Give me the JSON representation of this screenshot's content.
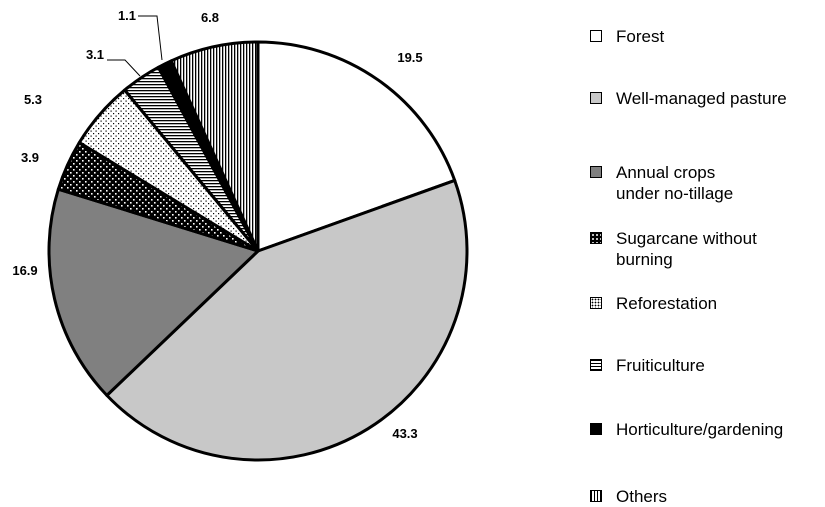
{
  "chart_data": {
    "type": "pie",
    "categories": [
      "Forest",
      "Well-managed pasture",
      "Annual crops\nunder no-tillage",
      "Sugarcane without\nburning",
      "Reforestation",
      "Fruiticulture",
      "Horticulture/gardening",
      "Others"
    ],
    "values": [
      19.5,
      43.3,
      16.9,
      3.9,
      5.3,
      3.1,
      1.1,
      6.8
    ],
    "value_labels": [
      "19.5",
      "43.3",
      "16.9",
      "3.9",
      "5.3",
      "3.1",
      "1.1",
      "6.8"
    ],
    "fills": [
      "white",
      "light-gray",
      "dark-gray",
      "black-dotted",
      "white-dotted",
      "horizontal-lines",
      "black",
      "vertical-lines"
    ],
    "legend_position": "right",
    "start": "12 o'clock, clockwise"
  }
}
